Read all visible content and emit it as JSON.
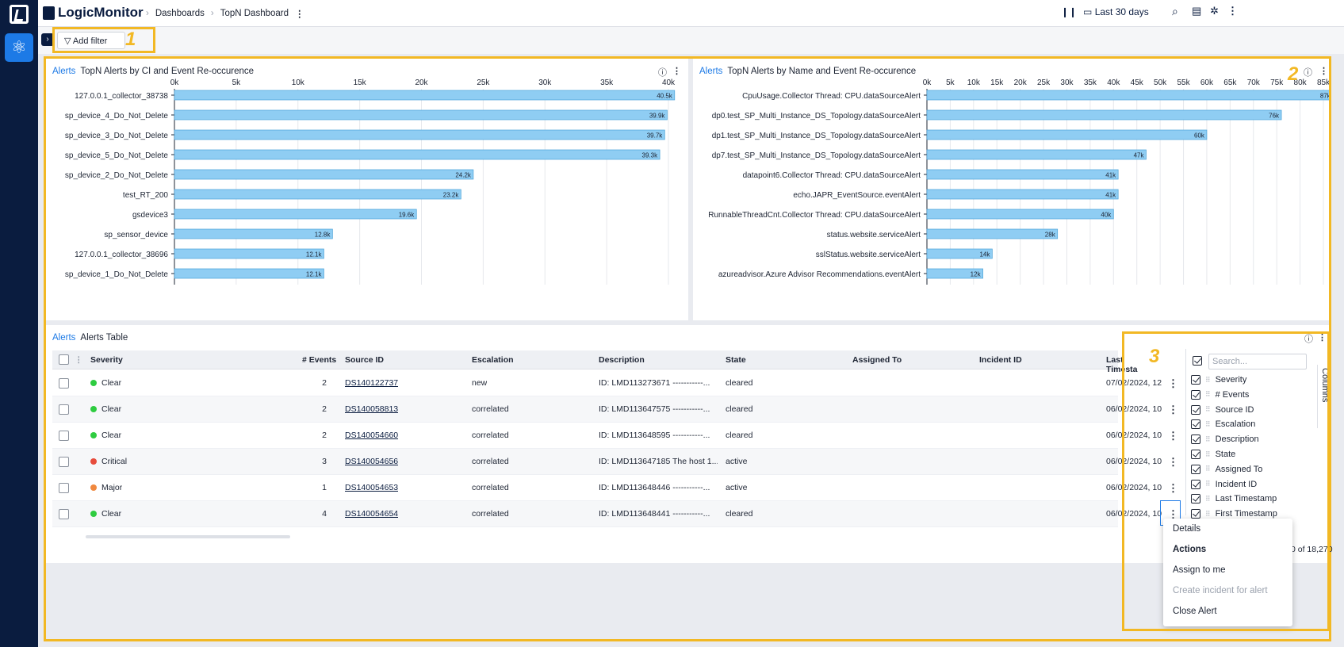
{
  "app": {
    "brand": "LogicMonitor",
    "breadcrumb": [
      "Dashboards",
      "TopN Dashboard"
    ],
    "time_range": "Last 30 days"
  },
  "filter": {
    "add_label": "Add filter"
  },
  "annotations": [
    "1",
    "2",
    "3"
  ],
  "chart1": {
    "link": "Alerts",
    "title": "TopN Alerts by CI and Event Re-occurence",
    "chart_data": {
      "type": "bar",
      "orientation": "horizontal",
      "xlim": [
        0,
        40000
      ],
      "ticks": [
        0,
        5000,
        10000,
        15000,
        20000,
        25000,
        30000,
        35000,
        40000
      ],
      "tick_labels": [
        "0k",
        "5k",
        "10k",
        "15k",
        "20k",
        "25k",
        "30k",
        "35k",
        "40k"
      ],
      "categories": [
        "127.0.0.1_collector_38738",
        "sp_device_4_Do_Not_Delete",
        "sp_device_3_Do_Not_Delete",
        "sp_device_5_Do_Not_Delete",
        "sp_device_2_Do_Not_Delete",
        "test_RT_200",
        "gsdevice3",
        "sp_sensor_device",
        "127.0.0.1_collector_38696",
        "sp_device_1_Do_Not_Delete"
      ],
      "values": [
        40500,
        39900,
        39700,
        39300,
        24200,
        23200,
        19600,
        12800,
        12100,
        12100
      ],
      "labels": [
        "40.5k",
        "39.9k",
        "39.7k",
        "39.3k",
        "24.2k",
        "23.2k",
        "19.6k",
        "12.8k",
        "12.1k",
        "12.1k"
      ],
      "bar_color": "#8fcdf3"
    }
  },
  "chart2": {
    "link": "Alerts",
    "title": "TopN Alerts by Name and Event Re-occurence",
    "chart_data": {
      "type": "bar",
      "orientation": "horizontal",
      "xlim": [
        0,
        85000
      ],
      "ticks": [
        0,
        5000,
        10000,
        15000,
        20000,
        25000,
        30000,
        35000,
        40000,
        45000,
        50000,
        55000,
        60000,
        65000,
        70000,
        75000,
        80000,
        85000
      ],
      "tick_labels": [
        "0k",
        "5k",
        "10k",
        "15k",
        "20k",
        "25k",
        "30k",
        "35k",
        "40k",
        "45k",
        "50k",
        "55k",
        "60k",
        "65k",
        "70k",
        "75k",
        "80k",
        "85k"
      ],
      "categories": [
        "CpuUsage.Collector Thread: CPU.dataSourceAlert",
        "dp0.test_SP_Multi_Instance_DS_Topology.dataSourceAlert",
        "dp1.test_SP_Multi_Instance_DS_Topology.dataSourceAlert",
        "dp7.test_SP_Multi_Instance_DS_Topology.dataSourceAlert",
        "datapoint6.Collector Thread: CPU.dataSourceAlert",
        "echo.JAPR_EventSource.eventAlert",
        "RunnableThreadCnt.Collector Thread: CPU.dataSourceAlert",
        "status.website.serviceAlert",
        "sslStatus.website.serviceAlert",
        "azureadvisor.Azure Advisor Recommendations.eventAlert"
      ],
      "values": [
        87000,
        76000,
        60000,
        47000,
        41000,
        41000,
        40000,
        28000,
        14000,
        12000
      ],
      "labels": [
        "87k",
        "76k",
        "60k",
        "47k",
        "41k",
        "41k",
        "40k",
        "28k",
        "14k",
        "12k"
      ],
      "bar_color": "#8fcdf3"
    }
  },
  "table": {
    "link": "Alerts",
    "title": "Alerts Table",
    "headers": [
      "Severity",
      "# Events",
      "Source ID",
      "Escalation",
      "Description",
      "State",
      "Assigned To",
      "Incident ID",
      "Last Timesta"
    ],
    "rows": [
      {
        "severity": "Clear",
        "color": "#2ecc40",
        "events": "2",
        "source": "DS140122737",
        "escalation": "new",
        "description": "ID: LMD113273671 -----------...",
        "state": "cleared",
        "last": "07/02/2024, 12"
      },
      {
        "severity": "Clear",
        "color": "#2ecc40",
        "events": "2",
        "source": "DS140058813",
        "escalation": "correlated",
        "description": "ID: LMD113647575 -----------...",
        "state": "cleared",
        "last": "06/02/2024, 10"
      },
      {
        "severity": "Clear",
        "color": "#2ecc40",
        "events": "2",
        "source": "DS140054660",
        "escalation": "correlated",
        "description": "ID: LMD113648595 -----------...",
        "state": "cleared",
        "last": "06/02/2024, 10"
      },
      {
        "severity": "Critical",
        "color": "#e74c3c",
        "events": "3",
        "source": "DS140054656",
        "escalation": "correlated",
        "description": "ID: LMD113647185 The host 1...",
        "state": "active",
        "last": "06/02/2024, 10"
      },
      {
        "severity": "Major",
        "color": "#f0883e",
        "events": "1",
        "source": "DS140054653",
        "escalation": "correlated",
        "description": "ID: LMD113648446 -----------...",
        "state": "active",
        "last": "06/02/2024, 10"
      },
      {
        "severity": "Clear",
        "color": "#2ecc40",
        "events": "4",
        "source": "DS140054654",
        "escalation": "correlated",
        "description": "ID: LMD113648441 -----------...",
        "state": "cleared",
        "last": "06/02/2024, 10"
      }
    ],
    "pagination": "0 of 18,270"
  },
  "columns_panel": {
    "search_placeholder": "Search...",
    "tab": "Columns",
    "items": [
      "Severity",
      "# Events",
      "Source ID",
      "Escalation",
      "Description",
      "State",
      "Assigned To",
      "Incident ID",
      "Last Timestamp",
      "First Timestamp"
    ]
  },
  "row_menu": {
    "details": "Details",
    "actions": "Actions",
    "assign": "Assign to me",
    "create_incident": "Create incident for alert",
    "close": "Close Alert"
  }
}
